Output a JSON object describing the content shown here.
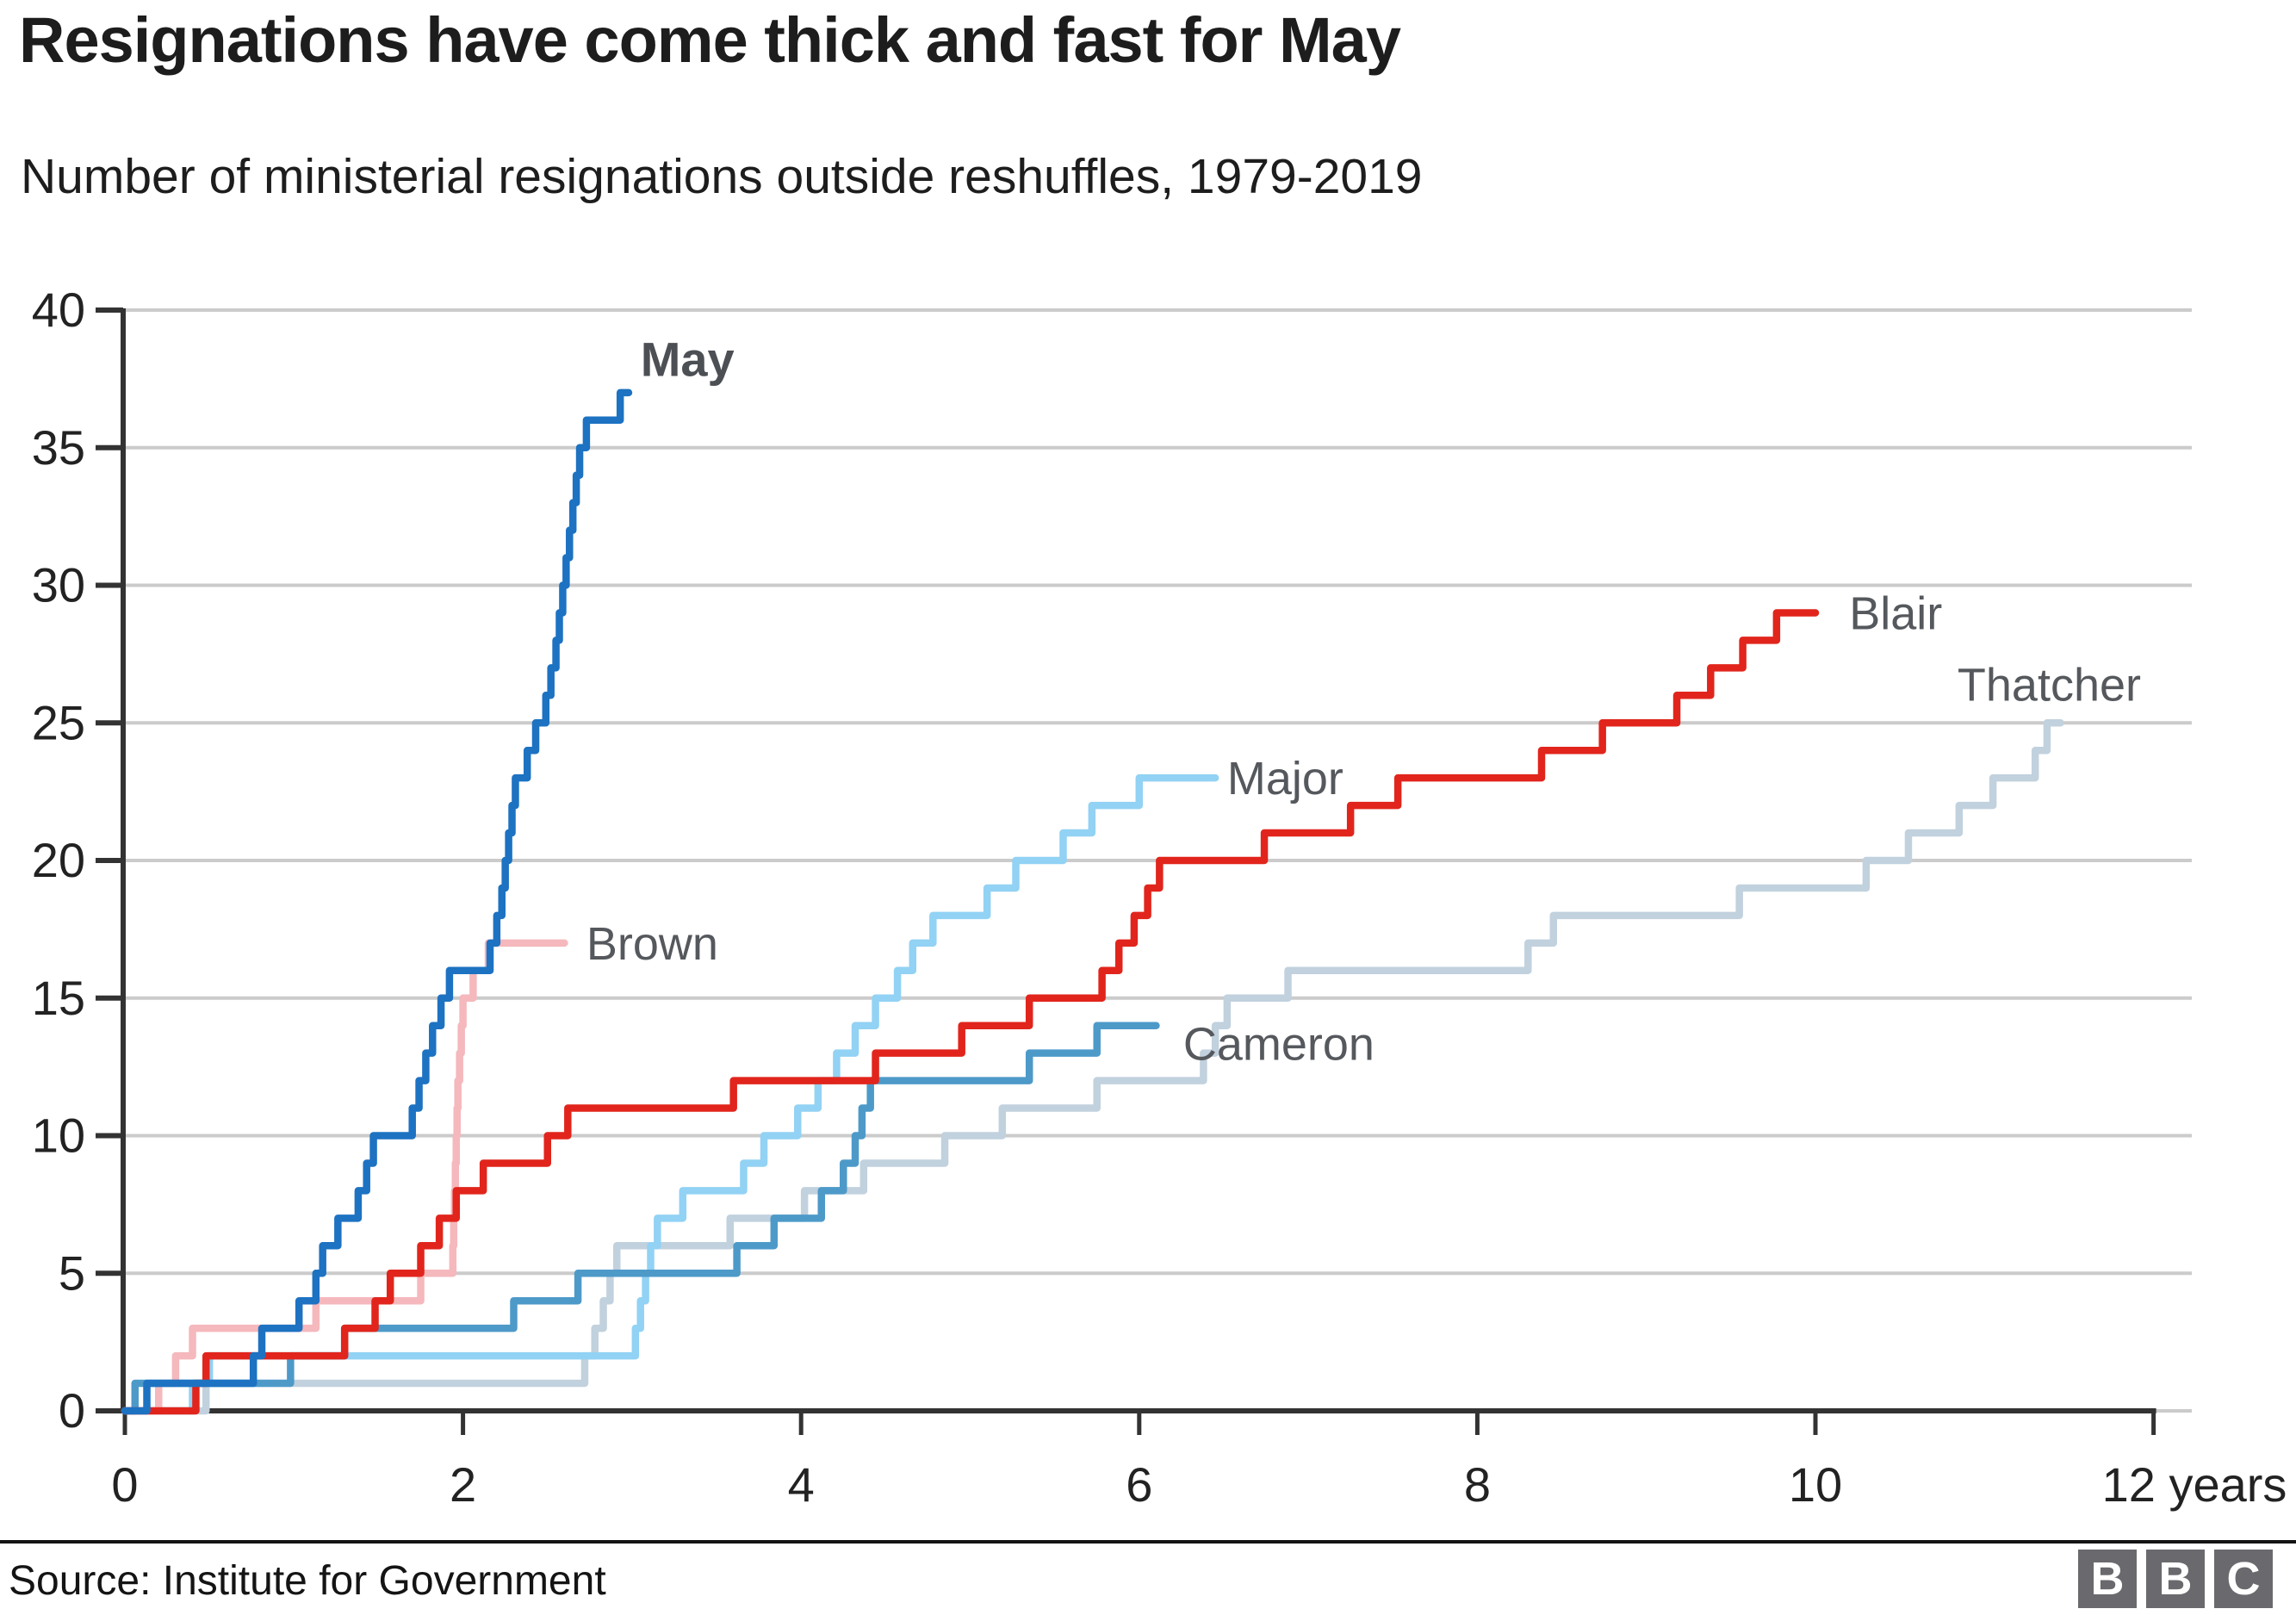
{
  "title": "Resignations have come thick and fast for May",
  "subtitle": "Number of ministerial resignations outside reshuffles, 1979-2019",
  "source": "Source: Institute for Government",
  "bbc_logo": {
    "letters": [
      "B",
      "B",
      "C"
    ],
    "block_color": "#6a6a6e"
  },
  "chart_data": {
    "type": "line",
    "step_interpolation": true,
    "title": "Number of ministerial resignations outside reshuffles, 1979-2019",
    "xlabel": "years",
    "ylabel": "",
    "xlim": [
      0,
      12.15
    ],
    "ylim": [
      0,
      40
    ],
    "grid": true,
    "grid_color": "#cbcbcb",
    "axis_color": "#333333",
    "tick_label_color": "#222222",
    "x_ticks": [
      0,
      2,
      4,
      6,
      8,
      10,
      12
    ],
    "x_tick_labels": [
      "0",
      "2",
      "4",
      "6",
      "8",
      "10",
      "12 years"
    ],
    "y_ticks": [
      0,
      5,
      10,
      15,
      20,
      25,
      30,
      35,
      40
    ],
    "y_tick_labels": [
      "0",
      "5",
      "10",
      "15",
      "20",
      "25",
      "30",
      "35",
      "40"
    ],
    "label_color": "#55585c",
    "series": [
      {
        "name": "Thatcher",
        "color": "#c1d1de",
        "final_value": 25,
        "end_year": 11.45,
        "label": {
          "text": "Thatcher",
          "x": 10.84,
          "y": 26.4,
          "bold": false,
          "color": "#55585c"
        },
        "points": [
          [
            0,
            0
          ],
          [
            0.48,
            1
          ],
          [
            2.72,
            2
          ],
          [
            2.78,
            3
          ],
          [
            2.83,
            4
          ],
          [
            2.87,
            5
          ],
          [
            2.91,
            6
          ],
          [
            3.58,
            7
          ],
          [
            4.02,
            8
          ],
          [
            4.37,
            9
          ],
          [
            4.85,
            10
          ],
          [
            5.19,
            11
          ],
          [
            5.75,
            12
          ],
          [
            6.38,
            13
          ],
          [
            6.45,
            14
          ],
          [
            6.52,
            15
          ],
          [
            6.88,
            16
          ],
          [
            8.3,
            17
          ],
          [
            8.45,
            18
          ],
          [
            9.55,
            19
          ],
          [
            10.3,
            20
          ],
          [
            10.55,
            21
          ],
          [
            10.85,
            22
          ],
          [
            11.05,
            23
          ],
          [
            11.3,
            24
          ],
          [
            11.37,
            25
          ]
        ]
      },
      {
        "name": "Major",
        "color": "#92d2f4",
        "final_value": 23,
        "end_year": 6.45,
        "label": {
          "text": "Major",
          "x": 6.52,
          "y": 23,
          "bold": false,
          "color": "#55585c"
        },
        "points": [
          [
            0,
            0
          ],
          [
            0.4,
            1
          ],
          [
            0.5,
            2
          ],
          [
            3.02,
            3
          ],
          [
            3.05,
            4
          ],
          [
            3.08,
            5
          ],
          [
            3.11,
            6
          ],
          [
            3.15,
            7
          ],
          [
            3.3,
            8
          ],
          [
            3.66,
            9
          ],
          [
            3.78,
            10
          ],
          [
            3.98,
            11
          ],
          [
            4.1,
            12
          ],
          [
            4.21,
            13
          ],
          [
            4.32,
            14
          ],
          [
            4.44,
            15
          ],
          [
            4.57,
            16
          ],
          [
            4.66,
            17
          ],
          [
            4.78,
            18
          ],
          [
            5.1,
            19
          ],
          [
            5.27,
            20
          ],
          [
            5.55,
            21
          ],
          [
            5.72,
            22
          ],
          [
            6.0,
            23
          ]
        ]
      },
      {
        "name": "Brown",
        "color": "#f5b8bc",
        "final_value": 17,
        "end_year": 2.6,
        "label": {
          "text": "Brown",
          "x": 2.73,
          "y": 17,
          "bold": false,
          "color": "#55585c"
        },
        "points": [
          [
            0,
            0
          ],
          [
            0.2,
            1
          ],
          [
            0.3,
            2
          ],
          [
            0.4,
            3
          ],
          [
            1.13,
            4
          ],
          [
            1.75,
            5
          ],
          [
            1.94,
            6
          ],
          [
            1.945,
            7
          ],
          [
            1.95,
            8
          ],
          [
            1.955,
            9
          ],
          [
            1.96,
            10
          ],
          [
            1.965,
            11
          ],
          [
            1.97,
            12
          ],
          [
            1.98,
            13
          ],
          [
            1.99,
            14
          ],
          [
            2.0,
            15
          ],
          [
            2.06,
            16
          ],
          [
            2.15,
            17
          ]
        ]
      },
      {
        "name": "Cameron",
        "color": "#4d9ac9",
        "final_value": 14,
        "end_year": 6.1,
        "label": {
          "text": "Cameron",
          "x": 6.26,
          "y": 13.35,
          "bold": false,
          "color": "#55585c"
        },
        "points": [
          [
            0,
            0
          ],
          [
            0.06,
            1
          ],
          [
            0.98,
            2
          ],
          [
            1.3,
            3
          ],
          [
            2.3,
            4
          ],
          [
            2.68,
            5
          ],
          [
            3.62,
            6
          ],
          [
            3.84,
            7
          ],
          [
            4.12,
            8
          ],
          [
            4.25,
            9
          ],
          [
            4.32,
            10
          ],
          [
            4.36,
            11
          ],
          [
            4.41,
            12
          ],
          [
            5.35,
            13
          ],
          [
            5.75,
            14
          ]
        ]
      },
      {
        "name": "Blair",
        "color": "#e1251c",
        "final_value": 29,
        "end_year": 10.0,
        "label": {
          "text": "Blair",
          "x": 10.2,
          "y": 29,
          "bold": false,
          "color": "#55585c"
        },
        "points": [
          [
            0,
            0
          ],
          [
            0.42,
            1
          ],
          [
            0.48,
            2
          ],
          [
            1.3,
            3
          ],
          [
            1.48,
            4
          ],
          [
            1.57,
            5
          ],
          [
            1.75,
            6
          ],
          [
            1.86,
            7
          ],
          [
            1.96,
            8
          ],
          [
            2.12,
            9
          ],
          [
            2.5,
            10
          ],
          [
            2.62,
            11
          ],
          [
            3.6,
            12
          ],
          [
            4.44,
            13
          ],
          [
            4.95,
            14
          ],
          [
            5.35,
            15
          ],
          [
            5.78,
            16
          ],
          [
            5.88,
            17
          ],
          [
            5.97,
            18
          ],
          [
            6.05,
            19
          ],
          [
            6.12,
            20
          ],
          [
            6.74,
            21
          ],
          [
            7.25,
            22
          ],
          [
            7.53,
            23
          ],
          [
            8.38,
            24
          ],
          [
            8.74,
            25
          ],
          [
            9.18,
            26
          ],
          [
            9.38,
            27
          ],
          [
            9.57,
            28
          ],
          [
            9.77,
            29
          ]
        ]
      },
      {
        "name": "May",
        "color": "#1d72c2",
        "final_value": 37,
        "end_year": 2.98,
        "label": {
          "text": "May",
          "x": 3.05,
          "y": 38.2,
          "bold": true,
          "color": "#4c4f54"
        },
        "points": [
          [
            0,
            0
          ],
          [
            0.13,
            1
          ],
          [
            0.76,
            2
          ],
          [
            0.81,
            3
          ],
          [
            1.03,
            4
          ],
          [
            1.13,
            5
          ],
          [
            1.17,
            6
          ],
          [
            1.26,
            7
          ],
          [
            1.38,
            8
          ],
          [
            1.43,
            9
          ],
          [
            1.47,
            10
          ],
          [
            1.7,
            11
          ],
          [
            1.74,
            12
          ],
          [
            1.78,
            13
          ],
          [
            1.82,
            14
          ],
          [
            1.87,
            15
          ],
          [
            1.92,
            16
          ],
          [
            2.16,
            17
          ],
          [
            2.2,
            18
          ],
          [
            2.23,
            19
          ],
          [
            2.25,
            20
          ],
          [
            2.27,
            21
          ],
          [
            2.29,
            22
          ],
          [
            2.31,
            23
          ],
          [
            2.38,
            24
          ],
          [
            2.43,
            25
          ],
          [
            2.49,
            26
          ],
          [
            2.52,
            27
          ],
          [
            2.55,
            28
          ],
          [
            2.57,
            29
          ],
          [
            2.59,
            30
          ],
          [
            2.61,
            31
          ],
          [
            2.63,
            32
          ],
          [
            2.65,
            33
          ],
          [
            2.67,
            34
          ],
          [
            2.69,
            35
          ],
          [
            2.73,
            36
          ],
          [
            2.93,
            37
          ]
        ]
      }
    ]
  }
}
